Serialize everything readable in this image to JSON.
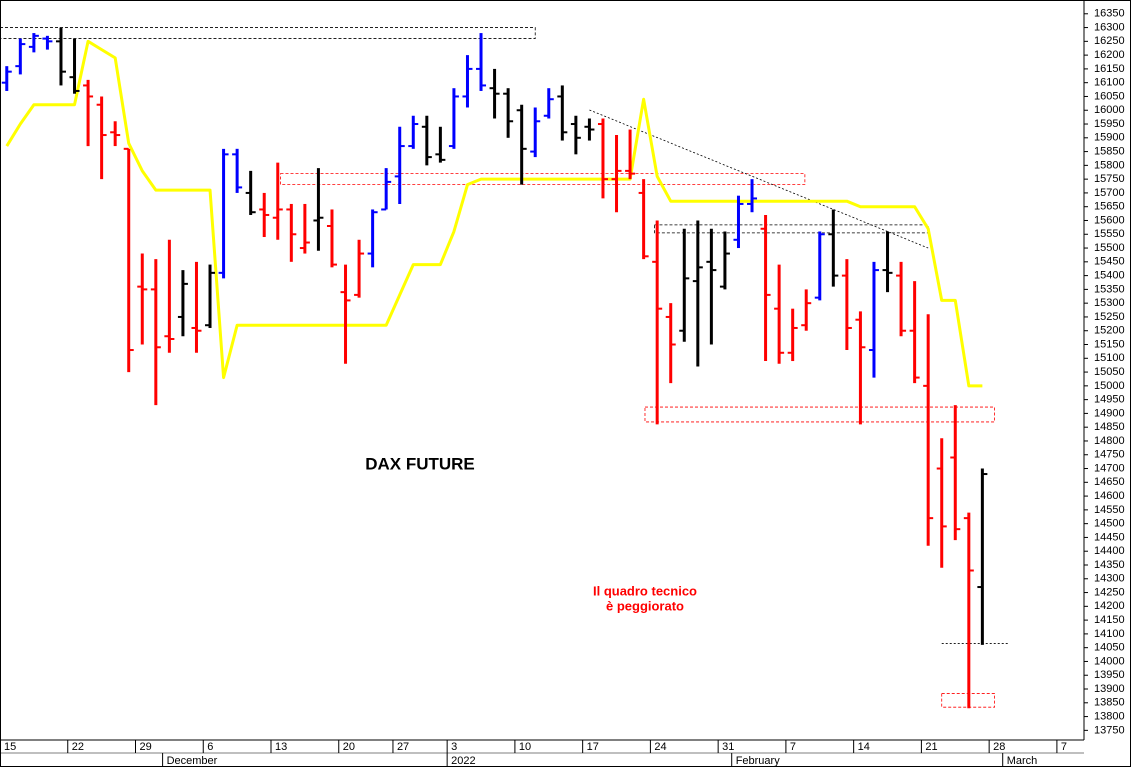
{
  "chart_data": {
    "type": "ohlc",
    "title": "DAX FUTURE",
    "note": [
      "Il quadro tecnico",
      "è peggiorato"
    ],
    "categories": [
      "15",
      null,
      null,
      null,
      null,
      "22",
      null,
      null,
      null,
      null,
      "29",
      null,
      null,
      null,
      null,
      "6",
      null,
      null,
      null,
      null,
      "13",
      null,
      null,
      null,
      null,
      "20",
      null,
      null,
      null,
      "27",
      null,
      null,
      null,
      "3",
      null,
      null,
      null,
      null,
      "10",
      null,
      null,
      null,
      null,
      "17",
      null,
      null,
      null,
      null,
      "24",
      null,
      null,
      null,
      null,
      "31",
      null,
      null,
      null,
      null,
      "7",
      null,
      null,
      null,
      null,
      "14",
      null,
      null,
      null,
      null,
      "21",
      null,
      null,
      null,
      null,
      "28",
      null,
      null,
      null,
      null,
      "7",
      null
    ],
    "months": [
      null,
      null,
      null,
      null,
      null,
      null,
      null,
      null,
      null,
      null,
      null,
      null,
      "December",
      null,
      null,
      null,
      null,
      null,
      null,
      null,
      null,
      null,
      null,
      null,
      null,
      null,
      null,
      null,
      null,
      null,
      null,
      null,
      null,
      "2022",
      null,
      null,
      null,
      null,
      null,
      null,
      null,
      null,
      null,
      null,
      null,
      null,
      null,
      null,
      null,
      null,
      null,
      null,
      null,
      null,
      "February",
      null,
      null,
      null,
      null,
      null,
      null,
      null,
      null,
      null,
      null,
      null,
      null,
      null,
      null,
      null,
      null,
      null,
      null,
      null,
      "March",
      null,
      null,
      null,
      null,
      null
    ],
    "open": [
      16100,
      16160,
      16230,
      16260,
      16250,
      16120,
      16090,
      16020,
      15920,
      15860,
      15360,
      15350,
      15180,
      15250,
      15210,
      15220,
      15410,
      15840,
      15700,
      15640,
      15610,
      15640,
      15500,
      15600,
      15580,
      15340,
      15330,
      15480,
      15640,
      15760,
      15870,
      15940,
      15840,
      15870,
      16050,
      16150,
      16080,
      16060,
      16000,
      15850,
      15980,
      16050,
      15950,
      15940,
      15950,
      15750,
      15780,
      15700,
      15450,
      15250,
      15200,
      15380,
      15450,
      15360,
      15530,
      15660,
      15570,
      15280,
      15120,
      15220,
      15320,
      15550,
      15400,
      15240,
      15130,
      15420,
      15400,
      15200,
      15000,
      14700,
      14740,
      14520,
      14270,
      null,
      null,
      null,
      null,
      null,
      null,
      null
    ],
    "high": [
      16160,
      16260,
      16280,
      16270,
      16300,
      16260,
      16110,
      16050,
      15960,
      15860,
      15480,
      15460,
      15530,
      15420,
      15450,
      15440,
      15860,
      15860,
      15780,
      15700,
      15810,
      15660,
      15660,
      15790,
      15640,
      15440,
      15530,
      15640,
      15790,
      15940,
      15980,
      15980,
      15940,
      16080,
      16200,
      16280,
      16150,
      16080,
      16020,
      16010,
      16080,
      16090,
      15980,
      15970,
      15970,
      15910,
      15930,
      15750,
      15600,
      15300,
      15570,
      15600,
      15570,
      15560,
      15690,
      15750,
      15620,
      15440,
      15280,
      15350,
      15560,
      15640,
      15460,
      15270,
      15450,
      15560,
      15450,
      15380,
      15260,
      14810,
      14930,
      14540,
      14700,
      null,
      null,
      null,
      null,
      null,
      null,
      null
    ],
    "low": [
      16070,
      16130,
      16210,
      16220,
      16090,
      16060,
      15870,
      15750,
      15870,
      15050,
      15150,
      14930,
      15120,
      15180,
      15120,
      15210,
      15390,
      15700,
      15620,
      15540,
      15530,
      15450,
      15480,
      15490,
      15430,
      15080,
      15320,
      15430,
      15640,
      15660,
      15860,
      15800,
      15810,
      15860,
      16010,
      16070,
      15970,
      15900,
      15730,
      15830,
      15970,
      15890,
      15840,
      15890,
      15680,
      15630,
      15750,
      15460,
      14860,
      15010,
      15160,
      15070,
      15150,
      15350,
      15500,
      15630,
      15090,
      15080,
      15090,
      15200,
      15310,
      15360,
      15130,
      14860,
      15030,
      15340,
      15180,
      15010,
      14420,
      14340,
      14440,
      13830,
      14060,
      null,
      null,
      null,
      null,
      null,
      null,
      null
    ],
    "close": [
      16140,
      16240,
      16270,
      16250,
      16140,
      16070,
      16050,
      15910,
      15910,
      15130,
      15350,
      15140,
      15170,
      15370,
      15200,
      15410,
      15840,
      15720,
      15630,
      15620,
      15640,
      15550,
      15520,
      15610,
      15440,
      15310,
      15480,
      15630,
      15740,
      15870,
      15950,
      15830,
      15820,
      16050,
      16150,
      16090,
      16060,
      15960,
      15860,
      15960,
      16040,
      15920,
      15900,
      15930,
      15750,
      15780,
      15770,
      15470,
      15280,
      15150,
      15390,
      15430,
      15420,
      15480,
      15660,
      15680,
      15330,
      15120,
      15210,
      15300,
      15550,
      15400,
      15210,
      15140,
      15420,
      15410,
      15200,
      15030,
      14520,
      14490,
      14480,
      14330,
      14680,
      null,
      null,
      null,
      null,
      null,
      null,
      null
    ],
    "bar_colors": [
      "#0000ff",
      "#0000ff",
      "#0000ff",
      "#0000ff",
      "#000000",
      "#000000",
      "#ff0000",
      "#ff0000",
      "#ff0000",
      "#ff0000",
      "#ff0000",
      "#ff0000",
      "#ff0000",
      "#000000",
      "#ff0000",
      "#000000",
      "#0000ff",
      "#0000ff",
      "#000000",
      "#ff0000",
      "#ff0000",
      "#ff0000",
      "#ff0000",
      "#000000",
      "#ff0000",
      "#ff0000",
      "#ff0000",
      "#0000ff",
      "#0000ff",
      "#0000ff",
      "#0000ff",
      "#000000",
      "#000000",
      "#0000ff",
      "#0000ff",
      "#0000ff",
      "#000000",
      "#000000",
      "#000000",
      "#0000ff",
      "#0000ff",
      "#000000",
      "#000000",
      "#000000",
      "#ff0000",
      "#ff0000",
      "#ff0000",
      "#ff0000",
      "#ff0000",
      "#ff0000",
      "#000000",
      "#000000",
      "#000000",
      "#000000",
      "#0000ff",
      "#0000ff",
      "#ff0000",
      "#ff0000",
      "#ff0000",
      "#ff0000",
      "#0000ff",
      "#000000",
      "#ff0000",
      "#ff0000",
      "#0000ff",
      "#000000",
      "#ff0000",
      "#ff0000",
      "#ff0000",
      "#ff0000",
      "#ff0000",
      "#ff0000",
      "#000000",
      null,
      null,
      null,
      null,
      null,
      null,
      null
    ],
    "line": {
      "color": "#ffff00",
      "values": [
        15870,
        15950,
        16020,
        16020,
        16020,
        16020,
        16250,
        16220,
        16190,
        15880,
        15780,
        15710,
        15710,
        15710,
        15710,
        15710,
        15030,
        15220,
        15220,
        15220,
        15220,
        15220,
        15220,
        15220,
        15220,
        15220,
        15220,
        15220,
        15220,
        15330,
        15440,
        15440,
        15440,
        15560,
        15730,
        15750,
        15750,
        15750,
        15750,
        15750,
        15750,
        15750,
        15750,
        15750,
        15750,
        15750,
        15750,
        16040,
        15760,
        15670,
        15670,
        15670,
        15670,
        15670,
        15670,
        15670,
        15670,
        15670,
        15670,
        15670,
        15670,
        15670,
        15670,
        15650,
        15650,
        15650,
        15650,
        15650,
        15570,
        15310,
        15310,
        15000,
        15000,
        null,
        null,
        null,
        null,
        null,
        null,
        null
      ]
    },
    "zones": [
      {
        "x": [
          -0.5,
          39
        ],
        "y": [
          16260,
          16300
        ],
        "color": "#000000"
      },
      {
        "x": [
          20.2,
          58.9
        ],
        "y": [
          15730,
          15770
        ],
        "color": "#ff0000"
      },
      {
        "x": [
          47.8,
          68
        ],
        "y": [
          15555,
          15584
        ],
        "color": "#000000"
      },
      {
        "x": [
          47.1,
          72.9
        ],
        "y": [
          14869,
          14923
        ],
        "color": "#ff0000"
      },
      {
        "x": [
          69,
          72.9
        ],
        "y": [
          13834,
          13884
        ],
        "color": "#ff0000"
      }
    ],
    "lines": [
      {
        "x": [
          43,
          68
        ],
        "y": [
          16001,
          15500
        ],
        "color": "#000000"
      },
      {
        "x": [
          69,
          73.9
        ],
        "y": [
          14065,
          14065
        ],
        "color": "#000000"
      }
    ],
    "ylim": [
      13715,
      16400
    ],
    "yticks": [
      13750,
      13800,
      13850,
      13900,
      13950,
      14000,
      14050,
      14100,
      14150,
      14200,
      14250,
      14300,
      14350,
      14400,
      14450,
      14500,
      14550,
      14600,
      14650,
      14700,
      14750,
      14800,
      14850,
      14900,
      14950,
      15000,
      15050,
      15100,
      15150,
      15200,
      15250,
      15300,
      15350,
      15400,
      15450,
      15500,
      15550,
      15600,
      15650,
      15700,
      15750,
      15800,
      15850,
      15900,
      15950,
      16000,
      16050,
      16100,
      16150,
      16200,
      16250,
      16300,
      16350
    ],
    "grid": false
  }
}
